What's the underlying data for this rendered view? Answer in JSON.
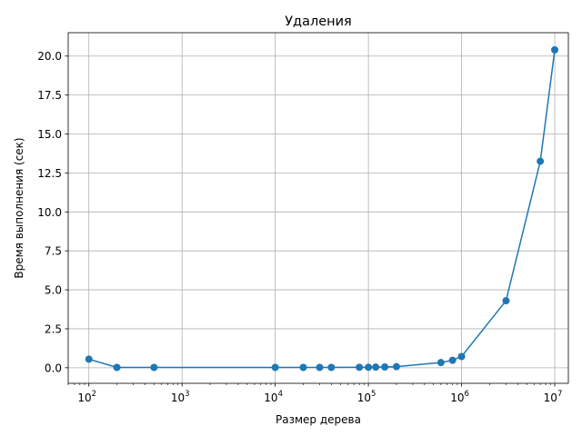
{
  "chart_data": {
    "type": "line",
    "title": "Удаления",
    "xlabel": "Размер дерева",
    "ylabel": "Время выполнения (сек)",
    "xscale": "log",
    "xlim": [
      60,
      14000000
    ],
    "ylim": [
      -1.0,
      21.5
    ],
    "grid": true,
    "color": "#1f77b4",
    "marker": "circle",
    "x_ticks": [
      {
        "value": 100,
        "base": "10",
        "exp": "2"
      },
      {
        "value": 1000,
        "base": "10",
        "exp": "3"
      },
      {
        "value": 10000,
        "base": "10",
        "exp": "4"
      },
      {
        "value": 100000,
        "base": "10",
        "exp": "5"
      },
      {
        "value": 1000000,
        "base": "10",
        "exp": "6"
      },
      {
        "value": 10000000,
        "base": "10",
        "exp": "7"
      }
    ],
    "y_ticks": [
      {
        "value": 0.0,
        "label": "0.0"
      },
      {
        "value": 2.5,
        "label": "2.5"
      },
      {
        "value": 5.0,
        "label": "5.0"
      },
      {
        "value": 7.5,
        "label": "7.5"
      },
      {
        "value": 10.0,
        "label": "10.0"
      },
      {
        "value": 12.5,
        "label": "12.5"
      },
      {
        "value": 15.0,
        "label": "15.0"
      },
      {
        "value": 17.5,
        "label": "17.5"
      },
      {
        "value": 20.0,
        "label": "20.0"
      }
    ],
    "x": [
      100,
      200,
      500,
      10000,
      20000,
      30000,
      40000,
      80000,
      100000,
      120000,
      150000,
      200000,
      600000,
      800000,
      1000000,
      3000000,
      7000000,
      10000000
    ],
    "y": [
      0.55,
      0.02,
      0.02,
      0.02,
      0.02,
      0.02,
      0.02,
      0.03,
      0.03,
      0.04,
      0.05,
      0.07,
      0.33,
      0.48,
      0.72,
      4.3,
      13.25,
      20.4
    ]
  }
}
